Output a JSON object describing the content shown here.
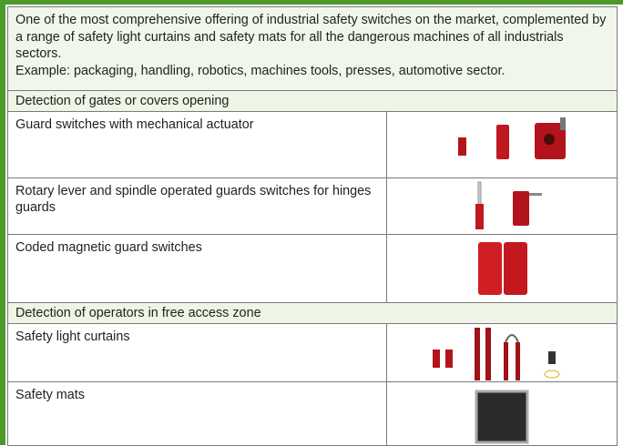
{
  "intro": {
    "paragraphs": [
      "One of the most comprehensive offering of industrial safety switches on the market, complemented by a range of safety light curtains and safety mats for all the dangerous machines of all industrials sectors.",
      "Example: packaging, handling, robotics, machines tools, presses, automotive sector."
    ]
  },
  "sections": [
    {
      "title": "Detection of gates or covers opening",
      "rows": [
        {
          "label": "Guard switches with mechanical actuator"
        },
        {
          "label": "Rotary lever and spindle operated guards switches for hinges guards"
        },
        {
          "label": "Coded magnetic guard switches"
        }
      ]
    },
    {
      "title": "Detection of operators in free access zone",
      "rows": [
        {
          "label": "Safety light curtains"
        },
        {
          "label": "Safety mats"
        }
      ]
    }
  ]
}
